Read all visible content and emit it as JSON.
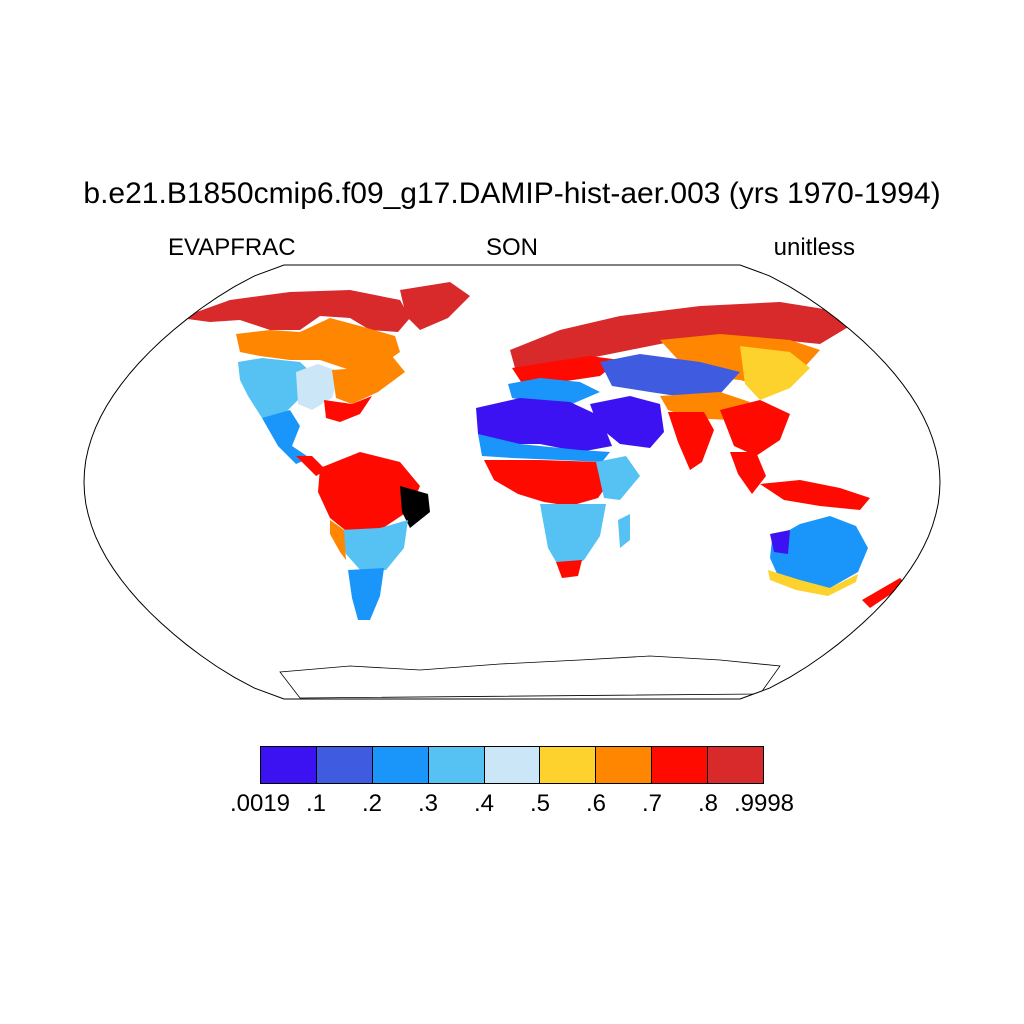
{
  "title": "b.e21.B1850cmip6.f09_g17.DAMIP-hist-aer.003 (yrs 1970-1994)",
  "left_string": "EVAPFRAC",
  "center_string": "SON",
  "right_string": "unitless",
  "colorbar": {
    "colors": [
      "#3d12f2",
      "#3f5ce0",
      "#1a96fb",
      "#55c2f3",
      "#cbe6f6",
      "#fdd22c",
      "#fe8600",
      "#fe0a00",
      "#d8292b"
    ],
    "labels": [
      ".0019",
      ".1",
      ".2",
      ".3",
      ".4",
      ".5",
      ".6",
      ".7",
      ".8",
      ".9998"
    ]
  },
  "map": {
    "projection": "Robinson",
    "variable": "EVAPFRAC",
    "season": "SON",
    "ocean_fill": "#ffffff",
    "coastline_color": "#000000"
  }
}
